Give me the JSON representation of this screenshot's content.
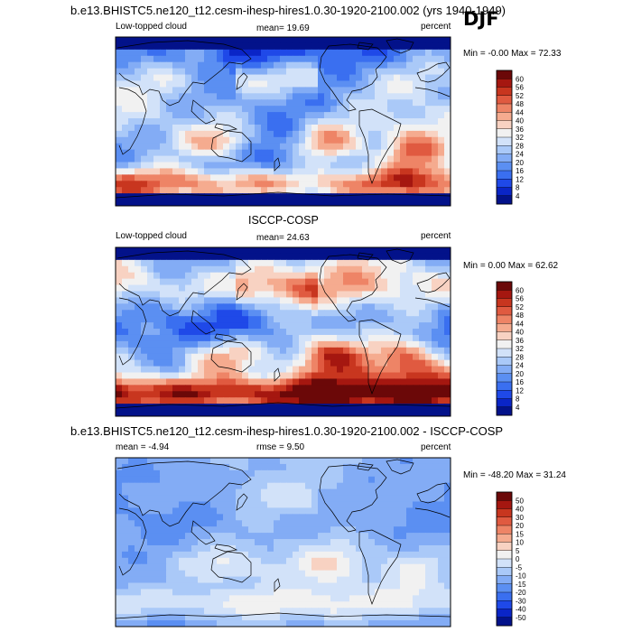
{
  "season": "DJF",
  "chart_data": [
    {
      "type": "heatmap",
      "title": "b.e13.BHISTC5.ne120_t12.cesm-ihesp-hires1.0.30-1920-2100.002 (yrs 1940-1949)",
      "left_label": "Low-topped cloud",
      "mean_label": "mean=  19.69",
      "units": "percent",
      "minmax": "Min =  -0.00 Max =  72.33",
      "colorbar_levels": [
        "4",
        "8",
        "12",
        "16",
        "20",
        "24",
        "28",
        "32",
        "36",
        "40",
        "44",
        "48",
        "52",
        "56",
        "60"
      ]
    },
    {
      "type": "heatmap",
      "title": "ISCCP-COSP",
      "left_label": "Low-topped cloud",
      "mean_label": "mean=  24.63",
      "units": "percent",
      "minmax": "Min =   0.00 Max =  62.62",
      "colorbar_levels": [
        "4",
        "8",
        "12",
        "16",
        "20",
        "24",
        "28",
        "32",
        "36",
        "40",
        "44",
        "48",
        "52",
        "56",
        "60"
      ]
    },
    {
      "type": "heatmap",
      "title": "b.e13.BHISTC5.ne120_t12.cesm-ihesp-hires1.0.30-1920-2100.002 - ISCCP-COSP",
      "left_label": "mean =  -4.94",
      "mean_label": "rmse =   9.50",
      "units": "percent",
      "minmax": "Min = -48.20 Max =  31.24",
      "colorbar_levels": [
        "-50",
        "-40",
        "-30",
        "-20",
        "-15",
        "-10",
        "-5",
        "0",
        "5",
        "10",
        "15",
        "20",
        "30",
        "40",
        "50"
      ]
    }
  ],
  "colors": {
    "scale": [
      "#03128a",
      "#0a25c7",
      "#1f49e8",
      "#3a6ff0",
      "#5b8ff2",
      "#83acf5",
      "#aac9f8",
      "#d2e2f9",
      "#f1f1f1",
      "#f8d2c2",
      "#f5ab8f",
      "#ee8466",
      "#e05a40",
      "#c8361f",
      "#a51710",
      "#6b0808"
    ]
  }
}
